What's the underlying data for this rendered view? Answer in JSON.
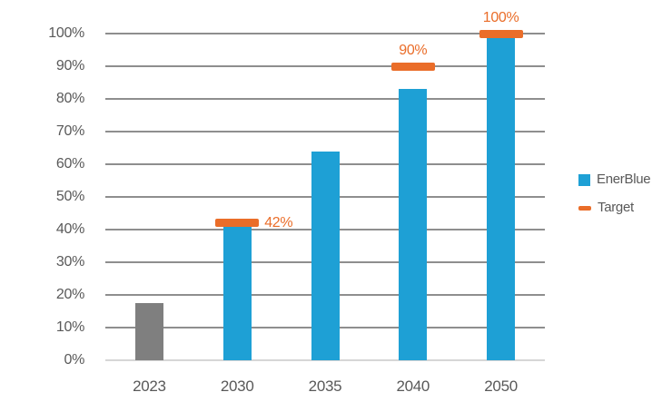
{
  "chart_data": {
    "type": "bar",
    "title": "",
    "xlabel": "",
    "ylabel": "",
    "categories": [
      "2023",
      "2030",
      "2035",
      "2040",
      "2050"
    ],
    "series": [
      {
        "name": "EnerBlue",
        "type": "bar",
        "values": [
          17.5,
          41,
          64,
          83,
          99
        ],
        "bar_colors": [
          "#7F7F7F",
          "#1EA0D5",
          "#1EA0D5",
          "#1EA0D5",
          "#1EA0D5"
        ]
      },
      {
        "name": "Target",
        "type": "tick-marker",
        "color": "#EA6D29",
        "points": [
          {
            "category": "2030",
            "value": 42,
            "label": "42%",
            "label_pos": "right"
          },
          {
            "category": "2040",
            "value": 90,
            "label": "90%",
            "label_pos": "top"
          },
          {
            "category": "2050",
            "value": 100,
            "label": "100%",
            "label_pos": "top"
          }
        ]
      }
    ],
    "ylim": [
      0,
      100
    ],
    "ytick_step": 10,
    "ytick_labels": [
      "0%",
      "10%",
      "20%",
      "30%",
      "40%",
      "50%",
      "60%",
      "70%",
      "80%",
      "90%",
      "100%"
    ],
    "grid": "horizontal",
    "legend_position": "right"
  },
  "legend": {
    "items": [
      {
        "label": "EnerBlue",
        "swatch": "square",
        "color": "#1EA0D5"
      },
      {
        "label": "Target",
        "swatch": "dash",
        "color": "#EA6D29"
      }
    ]
  },
  "colors": {
    "enerblue": "#1EA0D5",
    "target": "#EA6D29",
    "baseline_year_bar": "#7F7F7F",
    "gridline": "#8E8E8E",
    "axis_baseline": "#D6D6D6",
    "tick_text": "#595959",
    "background": "#FFFFFF"
  }
}
